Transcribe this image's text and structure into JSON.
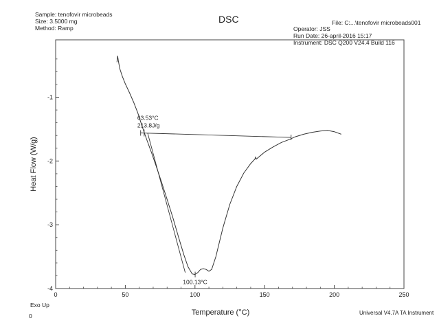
{
  "header_left": {
    "sample": "Sample: tenofovir microbeads",
    "size": "Size:  3.5000 mg",
    "method": "Method: Ramp"
  },
  "header_right": {
    "file": "File: C:...\\tenofovir microbeads001",
    "operator": "Operator: JSS",
    "run_date": "Run Date: 26-april-2016 15:17",
    "instrument": "Instrument: DSC Q200 V24.4 Build 116"
  },
  "exo_label": "Exo Up",
  "corner_zero": "0",
  "footer": "Universal V4.7A TA Instrument",
  "chart_data": {
    "type": "line",
    "title": "DSC",
    "xlabel": "Temperature (°C)",
    "ylabel": "Heat Flow (W/g)",
    "xlim": [
      0,
      250
    ],
    "ylim": [
      -4.0,
      -0.1
    ],
    "x_ticks": [
      0,
      50,
      100,
      150,
      200,
      250
    ],
    "y_ticks": [
      -1,
      -2,
      -3,
      -4
    ],
    "grid": false,
    "series": [
      {
        "points": [
          [
            44,
            -0.45
          ],
          [
            44.5,
            -0.35
          ],
          [
            45,
            -0.43
          ],
          [
            46,
            -0.55
          ],
          [
            48,
            -0.68
          ],
          [
            50,
            -0.79
          ],
          [
            53,
            -0.93
          ],
          [
            56,
            -1.08
          ],
          [
            59,
            -1.25
          ],
          [
            62,
            -1.45
          ],
          [
            64,
            -1.58
          ],
          [
            66,
            -1.7
          ],
          [
            69,
            -1.88
          ],
          [
            72,
            -2.07
          ],
          [
            76,
            -2.33
          ],
          [
            80,
            -2.6
          ],
          [
            84,
            -2.88
          ],
          [
            88,
            -3.18
          ],
          [
            92,
            -3.47
          ],
          [
            95,
            -3.66
          ],
          [
            98,
            -3.77
          ],
          [
            100,
            -3.78
          ],
          [
            102,
            -3.75
          ],
          [
            104,
            -3.7
          ],
          [
            106,
            -3.69
          ],
          [
            108,
            -3.7
          ],
          [
            110,
            -3.73
          ],
          [
            112,
            -3.7
          ],
          [
            115,
            -3.5
          ],
          [
            120,
            -3.05
          ],
          [
            125,
            -2.68
          ],
          [
            130,
            -2.4
          ],
          [
            135,
            -2.19
          ],
          [
            140,
            -2.04
          ],
          [
            143,
            -1.97
          ],
          [
            143.5,
            -1.94
          ],
          [
            144,
            -1.97
          ],
          [
            150,
            -1.86
          ],
          [
            156,
            -1.78
          ],
          [
            162,
            -1.71
          ],
          [
            168,
            -1.66
          ],
          [
            172,
            -1.62
          ],
          [
            178,
            -1.58
          ],
          [
            184,
            -1.55
          ],
          [
            190,
            -1.53
          ],
          [
            195,
            -1.52
          ],
          [
            200,
            -1.54
          ],
          [
            205,
            -1.58
          ]
        ]
      }
    ],
    "baseline": [
      [
        61,
        -1.56
      ],
      [
        169,
        -1.63
      ]
    ],
    "tangent": [
      [
        66,
        -1.56
      ],
      [
        93,
        -3.75
      ]
    ],
    "annotations": {
      "onset": {
        "x": 63.53,
        "y": -1.56,
        "temp": "63.53°C",
        "enthalpy": "213.8J/g"
      },
      "peak": {
        "x": 100.13,
        "y": -3.78,
        "label": "100.13°C"
      }
    }
  }
}
